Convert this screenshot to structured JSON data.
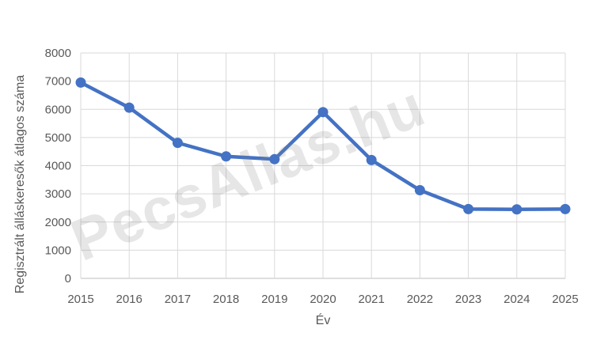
{
  "watermark": {
    "text": "PecsAllas.hu"
  },
  "chart_data": {
    "type": "line",
    "title": "",
    "xlabel": "Év",
    "ylabel": "Regisztrált álláskeresők átlagos száma",
    "categories": [
      "2015",
      "2016",
      "2017",
      "2018",
      "2019",
      "2020",
      "2021",
      "2022",
      "2023",
      "2024",
      "2025"
    ],
    "series": [
      {
        "name": "Regisztrált álláskeresők átlagos száma",
        "values": [
          6950,
          6060,
          4810,
          4330,
          4230,
          5900,
          4200,
          3130,
          2460,
          2450,
          2460
        ]
      }
    ],
    "ylim": [
      0,
      8000
    ],
    "y_ticks": [
      0,
      1000,
      2000,
      3000,
      4000,
      5000,
      6000,
      7000,
      8000
    ],
    "grid": true,
    "legend_position": "none",
    "colors": {
      "line": "#4472C4",
      "marker": "#4472C4",
      "gridline": "#D9D9D9",
      "axis_line": "#BFBFBF",
      "tick_text": "#595959",
      "axis_title_text": "#595959"
    }
  }
}
